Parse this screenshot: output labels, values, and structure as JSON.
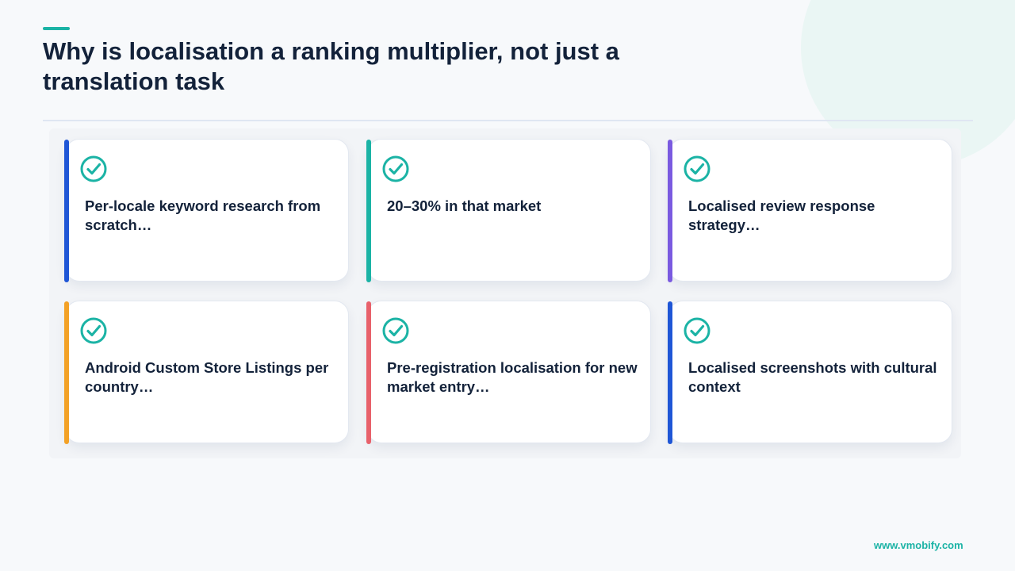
{
  "title": "Why is localisation a ranking multiplier, not just a translation task",
  "colors": {
    "accent": "#1bb3a5",
    "title": "#13223a",
    "bar_blue": "#1f56d6",
    "bar_teal": "#1bb3a5",
    "bar_purple": "#7a5ae0",
    "bar_orange": "#f3a126",
    "bar_red": "#e8616b"
  },
  "cards": [
    {
      "icon": "check-circle-icon",
      "text": "Per-locale keyword research from scratch…",
      "bar_color": "#1f56d6"
    },
    {
      "icon": "check-circle-icon",
      "text": "20–30% in that market",
      "bar_color": "#1bb3a5"
    },
    {
      "icon": "check-circle-icon",
      "text": "Localised review response strategy…",
      "bar_color": "#7a5ae0"
    },
    {
      "icon": "check-circle-icon",
      "text": "Android Custom Store Listings per country…",
      "bar_color": "#f3a126"
    },
    {
      "icon": "check-circle-icon",
      "text": "Pre-registration localisation for new market entry…",
      "bar_color": "#e8616b"
    },
    {
      "icon": "check-circle-icon",
      "text": "Localised screenshots with cultural context",
      "bar_color": "#1f56d6"
    }
  ],
  "footer": {
    "url": "www.vmobify.com"
  }
}
